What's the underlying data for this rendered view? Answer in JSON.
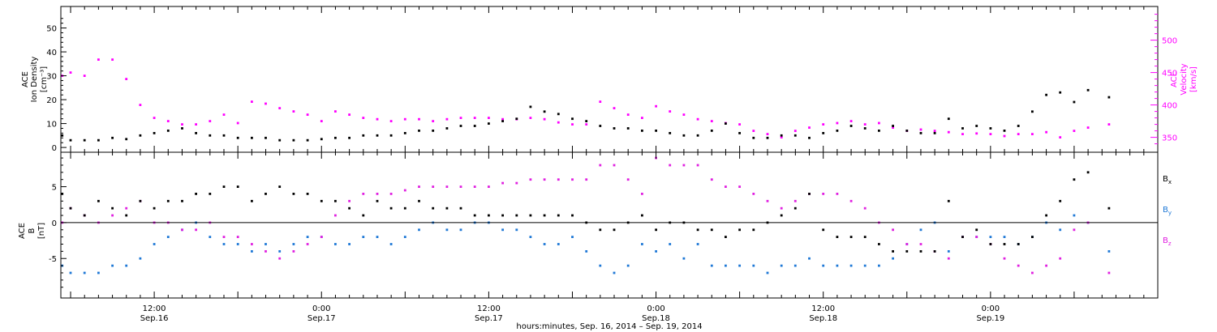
{
  "figure": {
    "xaxis_title": "hours:minutes, Sep. 16, 2014 – Sep. 19, 2014",
    "time_ticks": [
      {
        "time": "12:00",
        "date": "Sep.16",
        "hours": 12
      },
      {
        "time": "0:00",
        "date": "Sep.17",
        "hours": 24
      },
      {
        "time": "12:00",
        "date": "Sep.17",
        "hours": 36
      },
      {
        "time": "0:00",
        "date": "Sep.18",
        "hours": 48
      },
      {
        "time": "12:00",
        "date": "Sep.18",
        "hours": 60
      },
      {
        "time": "0:00",
        "date": "Sep.19",
        "hours": 72
      }
    ]
  },
  "chart_data": [
    {
      "type": "scatter",
      "title": "",
      "x_unit": "hours since 2014-09-16 00:00",
      "xlim": [
        5.3,
        84.0
      ],
      "left_axis": {
        "label_lines": [
          "ACE",
          "Ion Density",
          "[cm⁻³]"
        ],
        "ylim": [
          -2,
          59
        ],
        "ticks": [
          0,
          10,
          20,
          30,
          40,
          50
        ],
        "color": "#000000"
      },
      "right_axis": {
        "label_lines": [
          "ACE",
          "Velocity",
          "[km/s]"
        ],
        "ylim": [
          327,
          552
        ],
        "ticks": [
          350,
          400,
          450,
          500
        ],
        "color": "#ff00ff"
      },
      "series": [
        {
          "name": "Ion Density",
          "color": "#000000",
          "axis": "left",
          "x": [
            5.4,
            6,
            7,
            8,
            9,
            10,
            11,
            12,
            13,
            14,
            15,
            16,
            17,
            18,
            19,
            20,
            21,
            22,
            23,
            24,
            25,
            26,
            27,
            28,
            29,
            30,
            31,
            32,
            33,
            34,
            35,
            36,
            37,
            38,
            39,
            40,
            41,
            42,
            43,
            44,
            45,
            46,
            47,
            48,
            49,
            50,
            51,
            52,
            53,
            54,
            55,
            56,
            57,
            58,
            59,
            60,
            61,
            62,
            63,
            64,
            65,
            66,
            67,
            68,
            69,
            70,
            71,
            72,
            73,
            74,
            75,
            76,
            77,
            78,
            79,
            80.5
          ],
          "y": [
            5,
            3,
            3,
            3,
            4,
            3.5,
            5,
            6,
            7,
            8,
            6,
            5,
            5,
            4,
            4,
            4,
            3,
            3,
            3,
            3.5,
            4,
            4,
            5,
            5,
            5,
            6,
            7,
            7,
            8,
            9,
            9,
            10,
            11,
            12,
            17,
            15,
            14,
            12,
            11,
            9,
            8,
            8,
            7,
            7,
            6,
            5,
            5,
            7,
            10,
            6,
            4,
            4,
            5,
            5,
            4,
            6,
            7,
            9,
            8,
            7,
            9,
            7,
            6,
            6,
            12,
            8,
            9,
            8,
            7,
            9,
            15,
            22,
            23,
            19,
            24,
            21
          ]
        },
        {
          "name": "Velocity",
          "color": "#ff00ff",
          "axis": "right",
          "x": [
            5.4,
            6,
            7,
            8,
            9,
            10,
            11,
            12,
            13,
            14,
            15,
            16,
            17,
            18,
            19,
            20,
            21,
            22,
            23,
            24,
            25,
            26,
            27,
            28,
            29,
            30,
            31,
            32,
            33,
            34,
            35,
            36,
            37,
            38,
            39,
            40,
            41,
            42,
            43,
            44,
            45,
            46,
            47,
            48,
            49,
            50,
            51,
            52,
            53,
            54,
            55,
            56,
            57,
            58,
            59,
            60,
            61,
            62,
            63,
            64,
            65,
            66,
            67,
            68,
            69,
            70,
            71,
            72,
            73,
            74,
            75,
            76,
            77,
            78,
            79,
            80.5
          ],
          "y": [
            445,
            450,
            445,
            470,
            470,
            440,
            400,
            380,
            375,
            370,
            370,
            375,
            385,
            372,
            405,
            402,
            395,
            390,
            385,
            375,
            390,
            385,
            380,
            378,
            375,
            378,
            378,
            375,
            378,
            380,
            380,
            380,
            378,
            378,
            380,
            378,
            373,
            370,
            370,
            405,
            395,
            385,
            380,
            398,
            390,
            385,
            378,
            375,
            372,
            370,
            360,
            355,
            350,
            360,
            365,
            370,
            372,
            375,
            370,
            372,
            365,
            360,
            362,
            360,
            358,
            355,
            356,
            355,
            352,
            355,
            355,
            358,
            350,
            360,
            365,
            370
          ]
        }
      ]
    },
    {
      "type": "scatter",
      "title": "",
      "x_unit": "hours since 2014-09-16 00:00",
      "xlim": [
        5.3,
        84.0
      ],
      "left_axis": {
        "label_lines": [
          "ACE",
          "B",
          "[nT]"
        ],
        "ylim": [
          -10.5,
          9.8
        ],
        "ticks": [
          -5,
          0,
          5
        ],
        "color": "#000000"
      },
      "zero_line": true,
      "series": [
        {
          "name": "Bx",
          "color": "#000000",
          "x": [
            5.4,
            6,
            7,
            8,
            9,
            10,
            11,
            12,
            13,
            14,
            15,
            16,
            17,
            18,
            19,
            20,
            21,
            22,
            23,
            24,
            25,
            26,
            27,
            28,
            29,
            30,
            31,
            32,
            33,
            34,
            35,
            36,
            37,
            38,
            39,
            40,
            41,
            42,
            43,
            44,
            45,
            46,
            47,
            48,
            49,
            50,
            51,
            52,
            53,
            54,
            55,
            56,
            57,
            58,
            59,
            60,
            61,
            62,
            63,
            64,
            65,
            66,
            67,
            68,
            69,
            70,
            71,
            72,
            73,
            74,
            75,
            76,
            77,
            78,
            79,
            80.5
          ],
          "y": [
            4,
            2,
            1,
            3,
            2,
            1,
            3,
            2,
            3,
            3,
            4,
            4,
            5,
            5,
            3,
            4,
            5,
            4,
            4,
            3,
            3,
            2,
            1,
            3,
            2,
            2,
            3,
            2,
            2,
            2,
            1,
            1,
            1,
            1,
            1,
            1,
            1,
            1,
            0,
            -1,
            -1,
            0,
            1,
            -1,
            0,
            0,
            -1,
            -1,
            -2,
            -1,
            -1,
            0,
            1,
            2,
            4,
            -1,
            -2,
            -2,
            -2,
            -3,
            -4,
            -4,
            -4,
            -4,
            3,
            -2,
            -1,
            -3,
            -3,
            -3,
            -2,
            1,
            3,
            6,
            7,
            2
          ]
        },
        {
          "name": "By",
          "color": "#1e78d6",
          "x": [
            5.4,
            6,
            7,
            8,
            9,
            10,
            11,
            12,
            13,
            14,
            15,
            16,
            17,
            18,
            19,
            20,
            21,
            22,
            23,
            24,
            25,
            26,
            27,
            28,
            29,
            30,
            31,
            32,
            33,
            34,
            35,
            36,
            37,
            38,
            39,
            40,
            41,
            42,
            43,
            44,
            45,
            46,
            47,
            48,
            49,
            50,
            51,
            52,
            53,
            54,
            55,
            56,
            57,
            58,
            59,
            60,
            61,
            62,
            63,
            64,
            65,
            66,
            67,
            68,
            69,
            70,
            71,
            72,
            73,
            74,
            75,
            76,
            77,
            78,
            79,
            80.5
          ],
          "y": [
            -6,
            -7,
            -7,
            -7,
            -6,
            -6,
            -5,
            -3,
            -2,
            -1,
            0,
            -2,
            -3,
            -3,
            -4,
            -3,
            -4,
            -3,
            -2,
            -2,
            -3,
            -3,
            -2,
            -2,
            -3,
            -2,
            -1,
            0,
            -1,
            -1,
            0,
            0,
            -1,
            -1,
            -2,
            -3,
            -3,
            -2,
            -4,
            -6,
            -7,
            -6,
            -3,
            -4,
            -3,
            -5,
            -3,
            -6,
            -6,
            -6,
            -6,
            -7,
            -6,
            -6,
            -5,
            -6,
            -6,
            -6,
            -6,
            -6,
            -5,
            -3,
            -1,
            0,
            -4,
            -2,
            -2,
            -2,
            -2,
            -3,
            -2,
            0,
            -1,
            1,
            0,
            -4
          ]
        },
        {
          "name": "Bz",
          "color": "#e020e0",
          "x": [
            5.4,
            6,
            7,
            8,
            9,
            10,
            11,
            12,
            13,
            14,
            15,
            16,
            17,
            18,
            19,
            20,
            21,
            22,
            23,
            24,
            25,
            26,
            27,
            28,
            29,
            30,
            31,
            32,
            33,
            34,
            35,
            36,
            37,
            38,
            39,
            40,
            41,
            42,
            43,
            44,
            45,
            46,
            47,
            48,
            49,
            50,
            51,
            52,
            53,
            54,
            55,
            56,
            57,
            58,
            59,
            60,
            61,
            62,
            63,
            64,
            65,
            66,
            67,
            68,
            69,
            70,
            71,
            72,
            73,
            74,
            75,
            76,
            77,
            78,
            79,
            80.5
          ],
          "y": [
            0,
            2,
            1,
            0,
            1,
            2,
            3,
            0,
            0,
            -1,
            -1,
            0,
            -2,
            -2,
            -3,
            -4,
            -5,
            -4,
            -3,
            -2,
            1,
            3,
            4,
            4,
            4,
            4.5,
            5,
            5,
            5,
            5,
            5,
            5,
            5.5,
            5.5,
            6,
            6,
            6,
            6,
            6,
            8,
            8,
            6,
            4,
            9,
            8,
            8,
            8,
            6,
            5,
            5,
            4,
            3,
            2,
            3,
            4,
            4,
            4,
            3,
            2,
            0,
            -1,
            -3,
            -3,
            -4,
            -5,
            -2,
            -2,
            -3,
            -5,
            -6,
            -7,
            -6,
            -5,
            -1,
            0,
            -7
          ]
        }
      ]
    }
  ]
}
